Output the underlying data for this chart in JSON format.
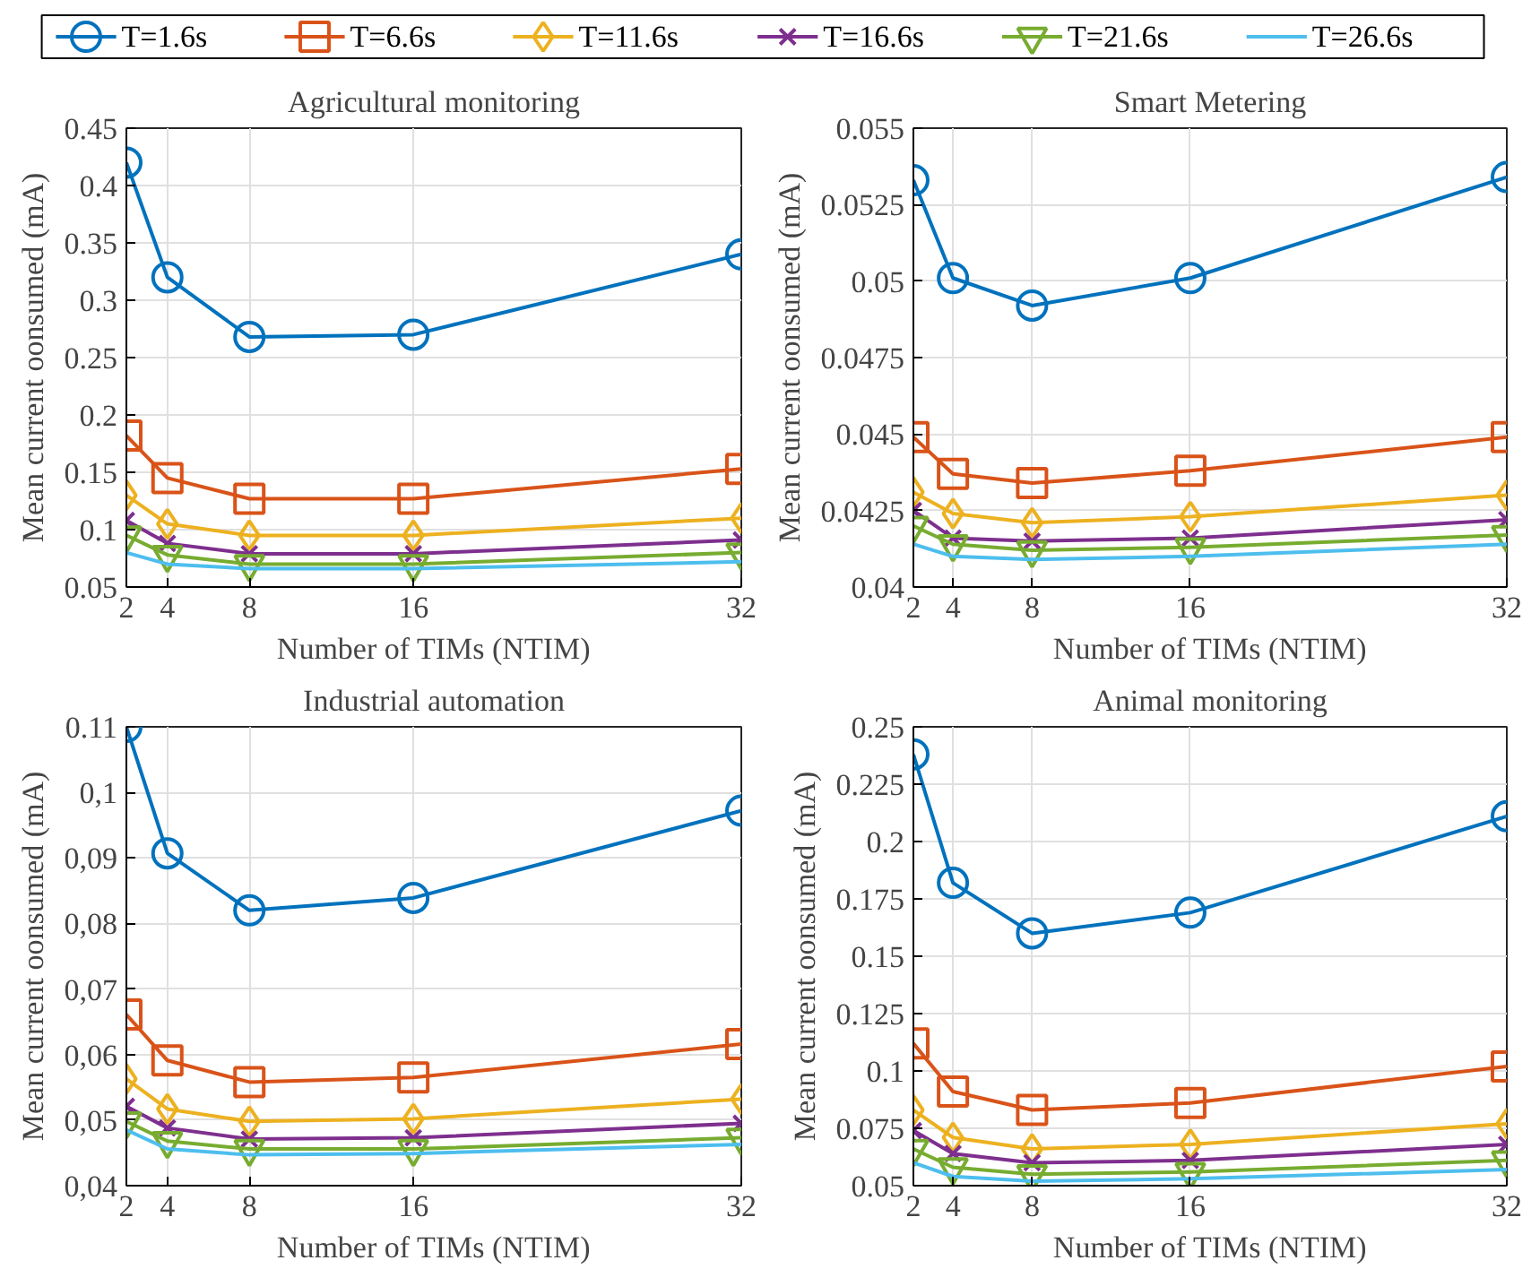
{
  "chart_data": [
    {
      "type": "line",
      "title": "Agricultural monitoring",
      "xlabel": "Number of TIMs (NTIM)",
      "ylabel": "Mean current oonsumed (mA)",
      "x": [
        2,
        4,
        8,
        16,
        32
      ],
      "xlim": [
        2,
        32
      ],
      "xticks": [
        2,
        4,
        8,
        16,
        32
      ],
      "ylim": [
        0.05,
        0.45
      ],
      "yticks": [
        0.05,
        0.1,
        0.15,
        0.2,
        0.25,
        0.3,
        0.35,
        0.4,
        0.45
      ],
      "grid": true,
      "legend": "top",
      "line_style": "solid",
      "series": [
        {
          "name": "T=1.6s",
          "color": "#0072bd",
          "marker": "circle",
          "values": [
            0.42,
            0.32,
            0.268,
            0.27,
            0.34
          ]
        },
        {
          "name": "T=6.6s",
          "color": "#d95319",
          "marker": "square",
          "values": [
            0.182,
            0.145,
            0.127,
            0.127,
            0.153
          ]
        },
        {
          "name": "T=11.6s",
          "color": "#edb120",
          "marker": "diamond",
          "values": [
            0.13,
            0.105,
            0.095,
            0.095,
            0.11
          ]
        },
        {
          "name": "T=16.6s",
          "color": "#7e2f8e",
          "marker": "cross",
          "values": [
            0.108,
            0.088,
            0.079,
            0.079,
            0.091
          ]
        },
        {
          "name": "T=21.6s",
          "color": "#77ac30",
          "marker": "triangle",
          "values": [
            0.095,
            0.078,
            0.07,
            0.07,
            0.08
          ]
        },
        {
          "name": "T=26.6s",
          "color": "#4dbeee",
          "marker": "none",
          "values": [
            0.08,
            0.07,
            0.066,
            0.066,
            0.072
          ]
        }
      ]
    },
    {
      "type": "line",
      "title": "Smart Metering",
      "xlabel": "Number of TIMs (NTIM)",
      "ylabel": "Mean current oonsumed (mA)",
      "x": [
        2,
        4,
        8,
        16,
        32
      ],
      "xlim": [
        2,
        32
      ],
      "xticks": [
        2,
        4,
        8,
        16,
        32
      ],
      "ylim": [
        0.04,
        0.055
      ],
      "yticks": [
        0.04,
        0.0425,
        0.045,
        0.0475,
        0.05,
        0.0525,
        0.055
      ],
      "grid": true,
      "line_style": "solid",
      "series": [
        {
          "color": "#0072bd",
          "marker": "circle",
          "values": [
            0.0533,
            0.0501,
            0.0492,
            0.0501,
            0.0534
          ]
        },
        {
          "color": "#d95319",
          "marker": "square",
          "values": [
            0.0449,
            0.0437,
            0.0434,
            0.0438,
            0.0449
          ]
        },
        {
          "color": "#edb120",
          "marker": "diamond",
          "values": [
            0.0431,
            0.0424,
            0.0421,
            0.0423,
            0.043
          ]
        },
        {
          "color": "#7e2f8e",
          "marker": "cross",
          "values": [
            0.0425,
            0.0416,
            0.0415,
            0.0416,
            0.0422
          ]
        },
        {
          "color": "#77ac30",
          "marker": "triangle",
          "values": [
            0.042,
            0.0414,
            0.0412,
            0.0413,
            0.0417
          ]
        },
        {
          "color": "#4dbeee",
          "marker": "none",
          "values": [
            0.0414,
            0.041,
            0.0409,
            0.041,
            0.0414
          ]
        }
      ]
    },
    {
      "type": "line",
      "title": "Industrial automation",
      "xlabel": "Number of TIMs (NTIM)",
      "ylabel": "Mean current oonsumed (mA)",
      "x": [
        2,
        4,
        8,
        16,
        32
      ],
      "xlim": [
        2,
        32
      ],
      "xticks": [
        2,
        4,
        8,
        16,
        32
      ],
      "ylim": [
        0.04,
        0.11
      ],
      "yticks": [
        {
          "value": 0.04,
          "label": "0,04"
        },
        {
          "value": 0.05,
          "label": "0,05"
        },
        {
          "value": 0.06,
          "label": "0,06"
        },
        {
          "value": 0.07,
          "label": "0,07"
        },
        {
          "value": 0.08,
          "label": "0,08"
        },
        {
          "value": 0.09,
          "label": "0,09"
        },
        {
          "value": 0.1,
          "label": "0,1"
        },
        0.11
      ],
      "grid": true,
      "line_style": "solid",
      "series": [
        {
          "color": "#0072bd",
          "marker": "circle",
          "values": [
            0.11,
            0.0907,
            0.082,
            0.0839,
            0.0972
          ]
        },
        {
          "color": "#d95319",
          "marker": "square",
          "values": [
            0.0661,
            0.0591,
            0.0558,
            0.0565,
            0.0616
          ]
        },
        {
          "color": "#edb120",
          "marker": "diamond",
          "values": [
            0.0563,
            0.0517,
            0.0498,
            0.0502,
            0.0532
          ]
        },
        {
          "color": "#7e2f8e",
          "marker": "cross",
          "values": [
            0.0521,
            0.0488,
            0.0471,
            0.0473,
            0.0495
          ]
        },
        {
          "color": "#77ac30",
          "marker": "triangle",
          "values": [
            0.0498,
            0.0468,
            0.0456,
            0.0456,
            0.0473
          ]
        },
        {
          "color": "#4dbeee",
          "marker": "none",
          "values": [
            0.0485,
            0.0456,
            0.0447,
            0.0449,
            0.0463
          ]
        }
      ]
    },
    {
      "type": "line",
      "title": "Animal monitoring",
      "xlabel": "Number of TIMs (NTIM)",
      "ylabel": "Mean current oonsumed (mA)",
      "x": [
        2,
        4,
        8,
        16,
        32
      ],
      "xlim": [
        2,
        32
      ],
      "xticks": [
        2,
        4,
        8,
        16,
        32
      ],
      "ylim": [
        0.05,
        0.25
      ],
      "yticks": [
        0.05,
        0.075,
        0.1,
        0.125,
        0.15,
        0.175,
        0.2,
        0.225,
        0.25
      ],
      "grid": true,
      "line_style": "solid",
      "series": [
        {
          "color": "#0072bd",
          "marker": "circle",
          "values": [
            0.238,
            0.182,
            0.16,
            0.169,
            0.211
          ]
        },
        {
          "color": "#d95319",
          "marker": "square",
          "values": [
            0.112,
            0.091,
            0.083,
            0.086,
            0.102
          ]
        },
        {
          "color": "#edb120",
          "marker": "diamond",
          "values": [
            0.083,
            0.071,
            0.066,
            0.068,
            0.077
          ]
        },
        {
          "color": "#7e2f8e",
          "marker": "cross",
          "values": [
            0.074,
            0.064,
            0.06,
            0.061,
            0.068
          ]
        },
        {
          "color": "#77ac30",
          "marker": "triangle",
          "values": [
            0.066,
            0.058,
            0.055,
            0.056,
            0.061
          ]
        },
        {
          "color": "#4dbeee",
          "marker": "none",
          "values": [
            0.06,
            0.054,
            0.052,
            0.053,
            0.057
          ]
        }
      ]
    }
  ]
}
